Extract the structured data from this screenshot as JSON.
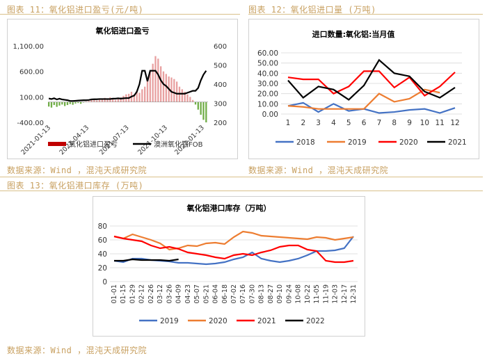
{
  "figures": {
    "fig11_title": "图表 11：氧化铝进口盈亏(元/吨)",
    "fig12_title": "图表 12：氧化铝进口量 (万吨)",
    "fig13_title": "图表 13：氧化铝港口库存 (万吨)",
    "source_text": "数据来源：Wind ，混沌天成研究院"
  },
  "colors": {
    "accent": "#c8a060",
    "red_bar": "#c00000",
    "black": "#000000",
    "blue": "#4472c4",
    "orange": "#ed7d31",
    "red": "#ff0000",
    "green": "#70ad47"
  },
  "chart_data": [
    {
      "type": "bar",
      "title": "氧化铝进口盈亏",
      "x_ticks": [
        "2021-01-13",
        "2021-04-13",
        "2021-07-13",
        "2021-10-13",
        "2022-01-13"
      ],
      "left_axis_ticks": [
        "1,100.00",
        "600.00",
        "100.00",
        "-400.00"
      ],
      "right_axis_ticks": [
        "600",
        "500",
        "400",
        "300",
        "200"
      ],
      "ylim_left": [
        -400,
        1100
      ],
      "ylim_right": [
        200,
        600
      ],
      "legend": [
        "氧化铝进口盈亏",
        "澳洲氧化铝FOB"
      ],
      "series": [
        {
          "name": "氧化铝进口盈亏",
          "kind": "bar",
          "values": [
            -90,
            -110,
            -60,
            -95,
            -70,
            -50,
            -80,
            -60,
            -40,
            -55,
            -30,
            -20,
            -35,
            -10,
            10,
            20,
            40,
            60,
            30,
            50,
            70,
            80,
            60,
            90,
            60,
            40,
            70,
            90,
            120,
            150,
            160,
            200,
            150,
            220,
            180,
            250,
            300,
            450,
            600,
            750,
            900,
            850,
            700,
            600,
            550,
            500,
            480,
            450,
            400,
            300,
            250,
            200,
            150,
            100,
            40,
            -50,
            -150,
            -250,
            -350,
            -400
          ]
        },
        {
          "name": "澳洲氧化铝FOB",
          "kind": "line",
          "values": [
            325,
            322,
            326,
            320,
            324,
            320,
            318,
            316,
            312,
            312,
            313,
            314,
            315,
            316,
            316,
            317,
            320,
            321,
            321,
            322,
            322,
            322,
            322,
            322,
            324,
            324,
            326,
            324,
            326,
            327,
            327,
            335,
            340,
            360,
            400,
            470,
            470,
            415,
            470,
            470,
            470,
            450,
            420,
            400,
            390,
            375,
            360,
            355,
            350,
            350,
            350,
            350,
            355,
            360,
            365,
            365,
            380,
            420,
            450,
            470
          ]
        }
      ]
    },
    {
      "type": "line",
      "title": "进口数量:氧化铝:当月值",
      "categories": [
        "1",
        "2",
        "3",
        "4",
        "5",
        "6",
        "7",
        "8",
        "9",
        "10",
        "11",
        "12"
      ],
      "y_ticks": [
        "60.00",
        "50.00",
        "40.00",
        "30.00",
        "20.00",
        "10.00",
        "0.00"
      ],
      "ylim": [
        0,
        60
      ],
      "series": [
        {
          "name": "2018",
          "values": [
            8,
            11,
            2,
            10,
            3,
            5,
            1,
            2,
            4,
            5,
            1,
            6
          ]
        },
        {
          "name": "2019",
          "values": [
            8,
            7,
            5,
            5,
            5,
            5,
            20,
            12,
            15,
            24,
            21,
            null
          ]
        },
        {
          "name": "2020",
          "values": [
            36,
            34,
            34,
            20,
            27,
            42,
            42,
            26,
            36,
            18,
            27,
            41
          ]
        },
        {
          "name": "2021",
          "values": [
            33,
            16,
            27,
            24,
            14,
            28,
            53,
            40,
            37,
            22,
            16,
            26
          ]
        }
      ]
    },
    {
      "type": "line",
      "title": "氧化铝港口库存（万吨）",
      "categories": [
        "01-01",
        "01-15",
        "01-29",
        "02-12",
        "02-26",
        "03-12",
        "03-26",
        "04-09",
        "04-23",
        "05-07",
        "05-21",
        "06-04",
        "06-18",
        "07-02",
        "07-16",
        "07-30",
        "08-13",
        "08-27",
        "09-10",
        "09-24",
        "10-08",
        "10-22",
        "11-05",
        "11-19",
        "12-03",
        "12-17",
        "12-31"
      ],
      "y_ticks": [
        "80",
        "60",
        "40",
        "20",
        "0"
      ],
      "ylim": [
        0,
        80
      ],
      "series": [
        {
          "name": "2019",
          "values": [
            30,
            28,
            33,
            33,
            31,
            30,
            29,
            27,
            27,
            26,
            25,
            26,
            28,
            32,
            35,
            42,
            33,
            30,
            28,
            30,
            33,
            38,
            44,
            44,
            45,
            48,
            65
          ]
        },
        {
          "name": "2020",
          "values": [
            65,
            62,
            68,
            64,
            60,
            55,
            46,
            48,
            52,
            51,
            55,
            56,
            54,
            64,
            72,
            70,
            66,
            65,
            64,
            63,
            62,
            61,
            64,
            63,
            60,
            62,
            64
          ]
        },
        {
          "name": "2021",
          "values": [
            65,
            62,
            60,
            58,
            52,
            48,
            50,
            47,
            42,
            40,
            38,
            35,
            33,
            38,
            40,
            38,
            42,
            45,
            50,
            52,
            52,
            46,
            44,
            30,
            28,
            28,
            30
          ]
        },
        {
          "name": "2022",
          "values": [
            30,
            30,
            32,
            31,
            31,
            31,
            30,
            32,
            null,
            null,
            null,
            null,
            null,
            null,
            null,
            null,
            null,
            null,
            null,
            null,
            null,
            null,
            null,
            null,
            null,
            null,
            null
          ]
        }
      ]
    }
  ]
}
